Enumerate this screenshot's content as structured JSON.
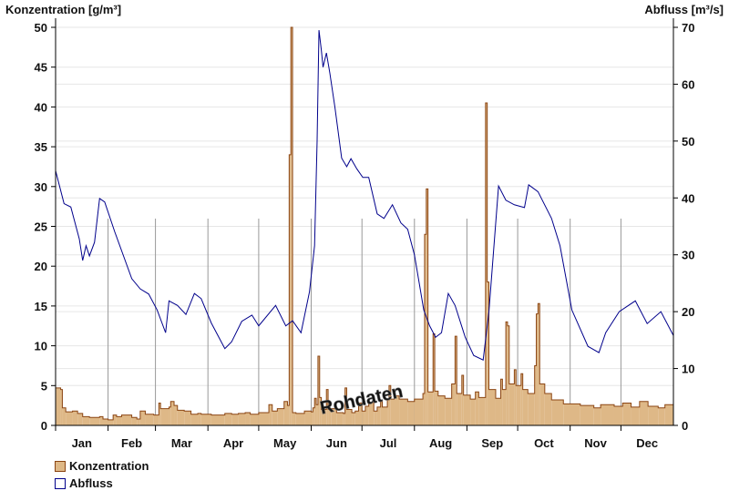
{
  "chart_data": {
    "type": "bar+line",
    "left_axis": {
      "label": "Konzentration [g/m³]",
      "range": [
        0,
        50
      ],
      "ticks": [
        0,
        5,
        10,
        15,
        20,
        25,
        30,
        35,
        40,
        45,
        50
      ]
    },
    "right_axis": {
      "label": "Abfluss [m³/s]",
      "range": [
        0,
        70
      ],
      "ticks": [
        0,
        10,
        20,
        30,
        40,
        50,
        60,
        70
      ]
    },
    "x_axis": {
      "unit": "day of year",
      "range": [
        0,
        365
      ],
      "months": [
        "Jan",
        "Feb",
        "Mar",
        "Apr",
        "May",
        "Jun",
        "Jul",
        "Aug",
        "Sep",
        "Oct",
        "Nov",
        "Dec"
      ],
      "month_starts": [
        0,
        31,
        59,
        90,
        120,
        151,
        181,
        212,
        243,
        273,
        304,
        334
      ]
    },
    "grid": true,
    "legend_position": "bottom-left",
    "watermark": "Rohdaten",
    "series": [
      {
        "name": "Konzentration",
        "type": "bar",
        "color": "#deb887",
        "edge": "#8b4513",
        "points": [
          [
            0,
            4.7
          ],
          [
            3,
            4.5
          ],
          [
            4,
            2.2
          ],
          [
            6,
            1.7
          ],
          [
            10,
            1.8
          ],
          [
            13,
            1.5
          ],
          [
            16,
            1.1
          ],
          [
            20,
            1.0
          ],
          [
            26,
            1.1
          ],
          [
            28,
            0.8
          ],
          [
            31,
            0.7
          ],
          [
            34,
            1.3
          ],
          [
            36,
            1.1
          ],
          [
            39,
            1.3
          ],
          [
            45,
            1.0
          ],
          [
            48,
            0.8
          ],
          [
            50,
            1.8
          ],
          [
            53,
            1.4
          ],
          [
            58,
            1.3
          ],
          [
            61,
            2.8
          ],
          [
            62,
            2.1
          ],
          [
            67,
            2.3
          ],
          [
            68,
            3.0
          ],
          [
            70,
            2.5
          ],
          [
            72,
            1.9
          ],
          [
            76,
            1.8
          ],
          [
            80,
            1.4
          ],
          [
            84,
            1.5
          ],
          [
            86,
            1.4
          ],
          [
            92,
            1.3
          ],
          [
            100,
            1.5
          ],
          [
            104,
            1.4
          ],
          [
            108,
            1.5
          ],
          [
            112,
            1.6
          ],
          [
            115,
            1.4
          ],
          [
            120,
            1.6
          ],
          [
            126,
            2.6
          ],
          [
            128,
            1.8
          ],
          [
            131,
            2.1
          ],
          [
            135,
            3.0
          ],
          [
            137,
            2.5
          ],
          [
            138,
            34.0
          ],
          [
            139,
            50.0
          ],
          [
            140,
            1.6
          ],
          [
            142,
            1.5
          ],
          [
            147,
            1.8
          ],
          [
            151,
            1.7
          ],
          [
            152,
            2.2
          ],
          [
            153,
            3.4
          ],
          [
            154,
            2.6
          ],
          [
            155,
            8.7
          ],
          [
            156,
            3.5
          ],
          [
            157,
            2.0
          ],
          [
            160,
            4.5
          ],
          [
            161,
            2.0
          ],
          [
            163,
            2.1
          ],
          [
            166,
            1.6
          ],
          [
            170,
            1.5
          ],
          [
            171,
            4.7
          ],
          [
            172,
            2.0
          ],
          [
            175,
            1.6
          ],
          [
            177,
            1.8
          ],
          [
            179,
            2.8
          ],
          [
            181,
            1.8
          ],
          [
            183,
            2.4
          ],
          [
            185,
            2.9
          ],
          [
            188,
            1.8
          ],
          [
            190,
            2.3
          ],
          [
            192,
            3.0
          ],
          [
            193,
            2.3
          ],
          [
            196,
            3.2
          ],
          [
            197,
            5.0
          ],
          [
            198,
            3.3
          ],
          [
            200,
            3.7
          ],
          [
            203,
            3.3
          ],
          [
            208,
            3.0
          ],
          [
            212,
            3.3
          ],
          [
            217,
            4.0
          ],
          [
            218,
            24.0
          ],
          [
            219,
            29.7
          ],
          [
            220,
            4.2
          ],
          [
            223,
            11.5
          ],
          [
            224,
            4.3
          ],
          [
            226,
            3.7
          ],
          [
            230,
            3.4
          ],
          [
            234,
            5.2
          ],
          [
            236,
            11.2
          ],
          [
            237,
            4.0
          ],
          [
            240,
            6.3
          ],
          [
            241,
            3.8
          ],
          [
            245,
            3.3
          ],
          [
            248,
            4.2
          ],
          [
            250,
            3.5
          ],
          [
            254,
            40.5
          ],
          [
            255,
            18.0
          ],
          [
            256,
            4.5
          ],
          [
            260,
            3.4
          ],
          [
            263,
            5.8
          ],
          [
            264,
            4.5
          ],
          [
            266,
            13.0
          ],
          [
            267,
            12.5
          ],
          [
            268,
            5.2
          ],
          [
            271,
            7.0
          ],
          [
            272,
            5.0
          ],
          [
            275,
            6.5
          ],
          [
            276,
            4.5
          ],
          [
            279,
            4.0
          ],
          [
            283,
            7.5
          ],
          [
            284,
            14.0
          ],
          [
            285,
            15.3
          ],
          [
            286,
            5.2
          ],
          [
            289,
            4.0
          ],
          [
            293,
            3.2
          ],
          [
            300,
            2.7
          ],
          [
            310,
            2.5
          ],
          [
            318,
            2.2
          ],
          [
            322,
            2.6
          ],
          [
            330,
            2.4
          ],
          [
            335,
            2.8
          ],
          [
            340,
            2.3
          ],
          [
            345,
            3.0
          ],
          [
            350,
            2.4
          ],
          [
            356,
            2.2
          ],
          [
            360,
            2.6
          ],
          [
            365,
            2.4
          ]
        ]
      },
      {
        "name": "Abfluss",
        "type": "line",
        "color": "#00008b",
        "points": [
          [
            0,
            44.8
          ],
          [
            5,
            39
          ],
          [
            9,
            38.4
          ],
          [
            14,
            32.8
          ],
          [
            16,
            29
          ],
          [
            18,
            31.6
          ],
          [
            20,
            29.8
          ],
          [
            23,
            32.2
          ],
          [
            26,
            39.9
          ],
          [
            29,
            39.3
          ],
          [
            35,
            34
          ],
          [
            45,
            25.8
          ],
          [
            50,
            24
          ],
          [
            55,
            23.1
          ],
          [
            60,
            20.3
          ],
          [
            65,
            16.3
          ],
          [
            67,
            21.9
          ],
          [
            72,
            21.1
          ],
          [
            77,
            19.5
          ],
          [
            82,
            23.2
          ],
          [
            86,
            22.3
          ],
          [
            92,
            18
          ],
          [
            100,
            13.5
          ],
          [
            104,
            14.7
          ],
          [
            110,
            18.3
          ],
          [
            116,
            19.4
          ],
          [
            120,
            17.5
          ],
          [
            130,
            21.1
          ],
          [
            136,
            17.5
          ],
          [
            140,
            18.4
          ],
          [
            145,
            16.3
          ],
          [
            150,
            23.5
          ],
          [
            153,
            31.6
          ],
          [
            154.5,
            50
          ],
          [
            155.6,
            69.5
          ],
          [
            157,
            66
          ],
          [
            158,
            63
          ],
          [
            160,
            65.5
          ],
          [
            162,
            62
          ],
          [
            165,
            56
          ],
          [
            169,
            47
          ],
          [
            172,
            45.5
          ],
          [
            174.5,
            46.9
          ],
          [
            178,
            45.1
          ],
          [
            181.5,
            43.6
          ],
          [
            185,
            43.6
          ],
          [
            190,
            37.2
          ],
          [
            194,
            36.4
          ],
          [
            199,
            38.8
          ],
          [
            204,
            35.6
          ],
          [
            208,
            34.5
          ],
          [
            212,
            30
          ],
          [
            217.5,
            20.3
          ],
          [
            221,
            17.5
          ],
          [
            224.5,
            15.5
          ],
          [
            228,
            16.3
          ],
          [
            232,
            23.2
          ],
          [
            236,
            21.1
          ],
          [
            242,
            15.5
          ],
          [
            247,
            12.3
          ],
          [
            252.6,
            11.5
          ],
          [
            256,
            20
          ],
          [
            261.7,
            42.1
          ],
          [
            266,
            39.6
          ],
          [
            271,
            38.8
          ],
          [
            277,
            38.3
          ],
          [
            279.5,
            42.3
          ],
          [
            285,
            41.1
          ],
          [
            293,
            36.4
          ],
          [
            298,
            31.6
          ],
          [
            305,
            20.3
          ],
          [
            314.5,
            13.9
          ],
          [
            321,
            12.8
          ],
          [
            325,
            16.3
          ],
          [
            333,
            20
          ],
          [
            342.5,
            21.9
          ],
          [
            349.5,
            17.9
          ],
          [
            357.6,
            20
          ],
          [
            365,
            15.8
          ]
        ]
      }
    ]
  },
  "legend": {
    "items": [
      {
        "label": "Konzentration",
        "color": "#deb887",
        "edge": "#8b4513"
      },
      {
        "label": "Abfluss",
        "color": "#ffffff",
        "edge": "#00008b"
      }
    ]
  }
}
